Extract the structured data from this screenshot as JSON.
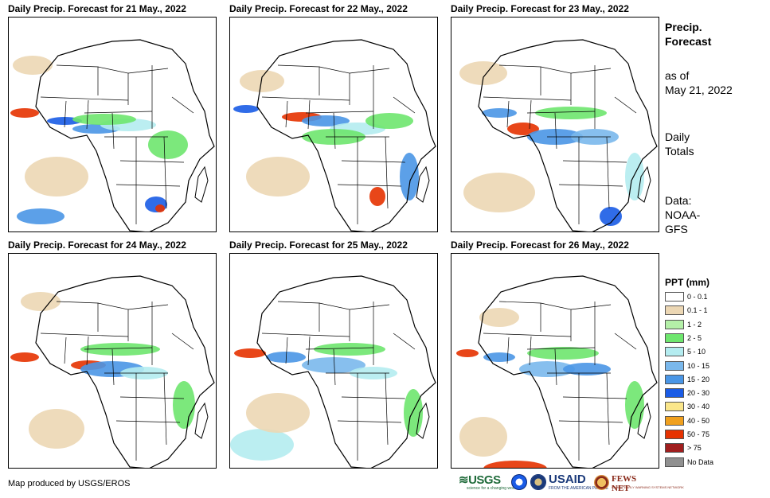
{
  "panels": [
    {
      "title": "Daily Precip. Forecast for 21 May., 2022"
    },
    {
      "title": "Daily Precip. Forecast for 22 May., 2022"
    },
    {
      "title": "Daily Precip. Forecast for 23 May., 2022"
    },
    {
      "title": "Daily Precip. Forecast for 24 May., 2022"
    },
    {
      "title": "Daily Precip. Forecast for 25 May., 2022"
    },
    {
      "title": "Daily Precip. Forecast for 26 May., 2022"
    }
  ],
  "side": {
    "title_line1": "Precip.",
    "title_line2": "Forecast",
    "asof_line1": "as of",
    "asof_line2": "May 21, 2022",
    "totals_line1": "Daily",
    "totals_line2": "Totals",
    "data_line1": "Data:",
    "data_line2": "NOAA-",
    "data_line3": "GFS"
  },
  "legend": {
    "title": "PPT (mm)",
    "items": [
      {
        "label": "0 - 0.1",
        "color": "#ffffff"
      },
      {
        "label": "0.1 - 1",
        "color": "#ecd7b4"
      },
      {
        "label": "1 - 2",
        "color": "#b4f0a8"
      },
      {
        "label": "2 - 5",
        "color": "#6ee66e"
      },
      {
        "label": "5 - 10",
        "color": "#b4ecf0"
      },
      {
        "label": "10 - 15",
        "color": "#7ab8ec"
      },
      {
        "label": "15 - 20",
        "color": "#4a96e6"
      },
      {
        "label": "20 - 30",
        "color": "#1a5ce6"
      },
      {
        "label": "30 - 40",
        "color": "#fae68a"
      },
      {
        "label": "40 - 50",
        "color": "#f0a01e"
      },
      {
        "label": "50 - 75",
        "color": "#e63200"
      },
      {
        "label": "> 75",
        "color": "#a01e1e"
      },
      {
        "label": "No Data",
        "color": "#909090"
      }
    ]
  },
  "footer": {
    "credit": "Map produced by USGS/EROS"
  },
  "logos": {
    "usgs": "USGS",
    "usgs_tagline": "science for a changing world",
    "usaid": "USAID",
    "usaid_tagline": "FROM THE AMERICAN PEOPLE",
    "fews": "FEWS NET",
    "fews_tagline": "FAMINE EARLY WARNING SYSTEMS NETWORK"
  }
}
